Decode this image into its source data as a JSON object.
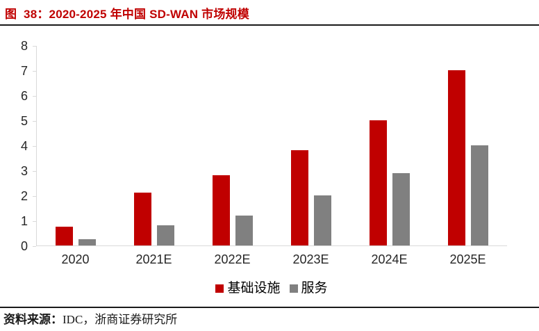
{
  "header": {
    "title": "图  38：2020-2025 年中国 SD-WAN 市场规模"
  },
  "chart_data": {
    "type": "bar",
    "title": "2020-2025 年中国 SD-WAN 市场规模",
    "categories": [
      "2020",
      "2021E",
      "2022E",
      "2023E",
      "2024E",
      "2025E"
    ],
    "series": [
      {
        "name": "基础设施",
        "key": "infrastructure",
        "color": "#c00000",
        "values": [
          0.75,
          2.1,
          2.8,
          3.8,
          5.0,
          7.0
        ]
      },
      {
        "name": "服务",
        "key": "service",
        "color": "#808080",
        "values": [
          0.25,
          0.8,
          1.2,
          2.0,
          2.9,
          4.0
        ]
      }
    ],
    "xlabel": "",
    "ylabel": "",
    "ylim": [
      0,
      8
    ],
    "ytick_step": 1,
    "yticks": [
      0,
      1,
      2,
      3,
      4,
      5,
      6,
      7,
      8
    ],
    "grid": false,
    "legend_position": "bottom"
  },
  "footer": {
    "source_label": "资料来源：",
    "source_text": "IDC，浙商证券研究所"
  },
  "colors": {
    "accent_red": "#c00000",
    "series_gray": "#808080",
    "axis_line": "#d9d9d9",
    "divider": "#1a1a1a",
    "text": "#262626"
  }
}
